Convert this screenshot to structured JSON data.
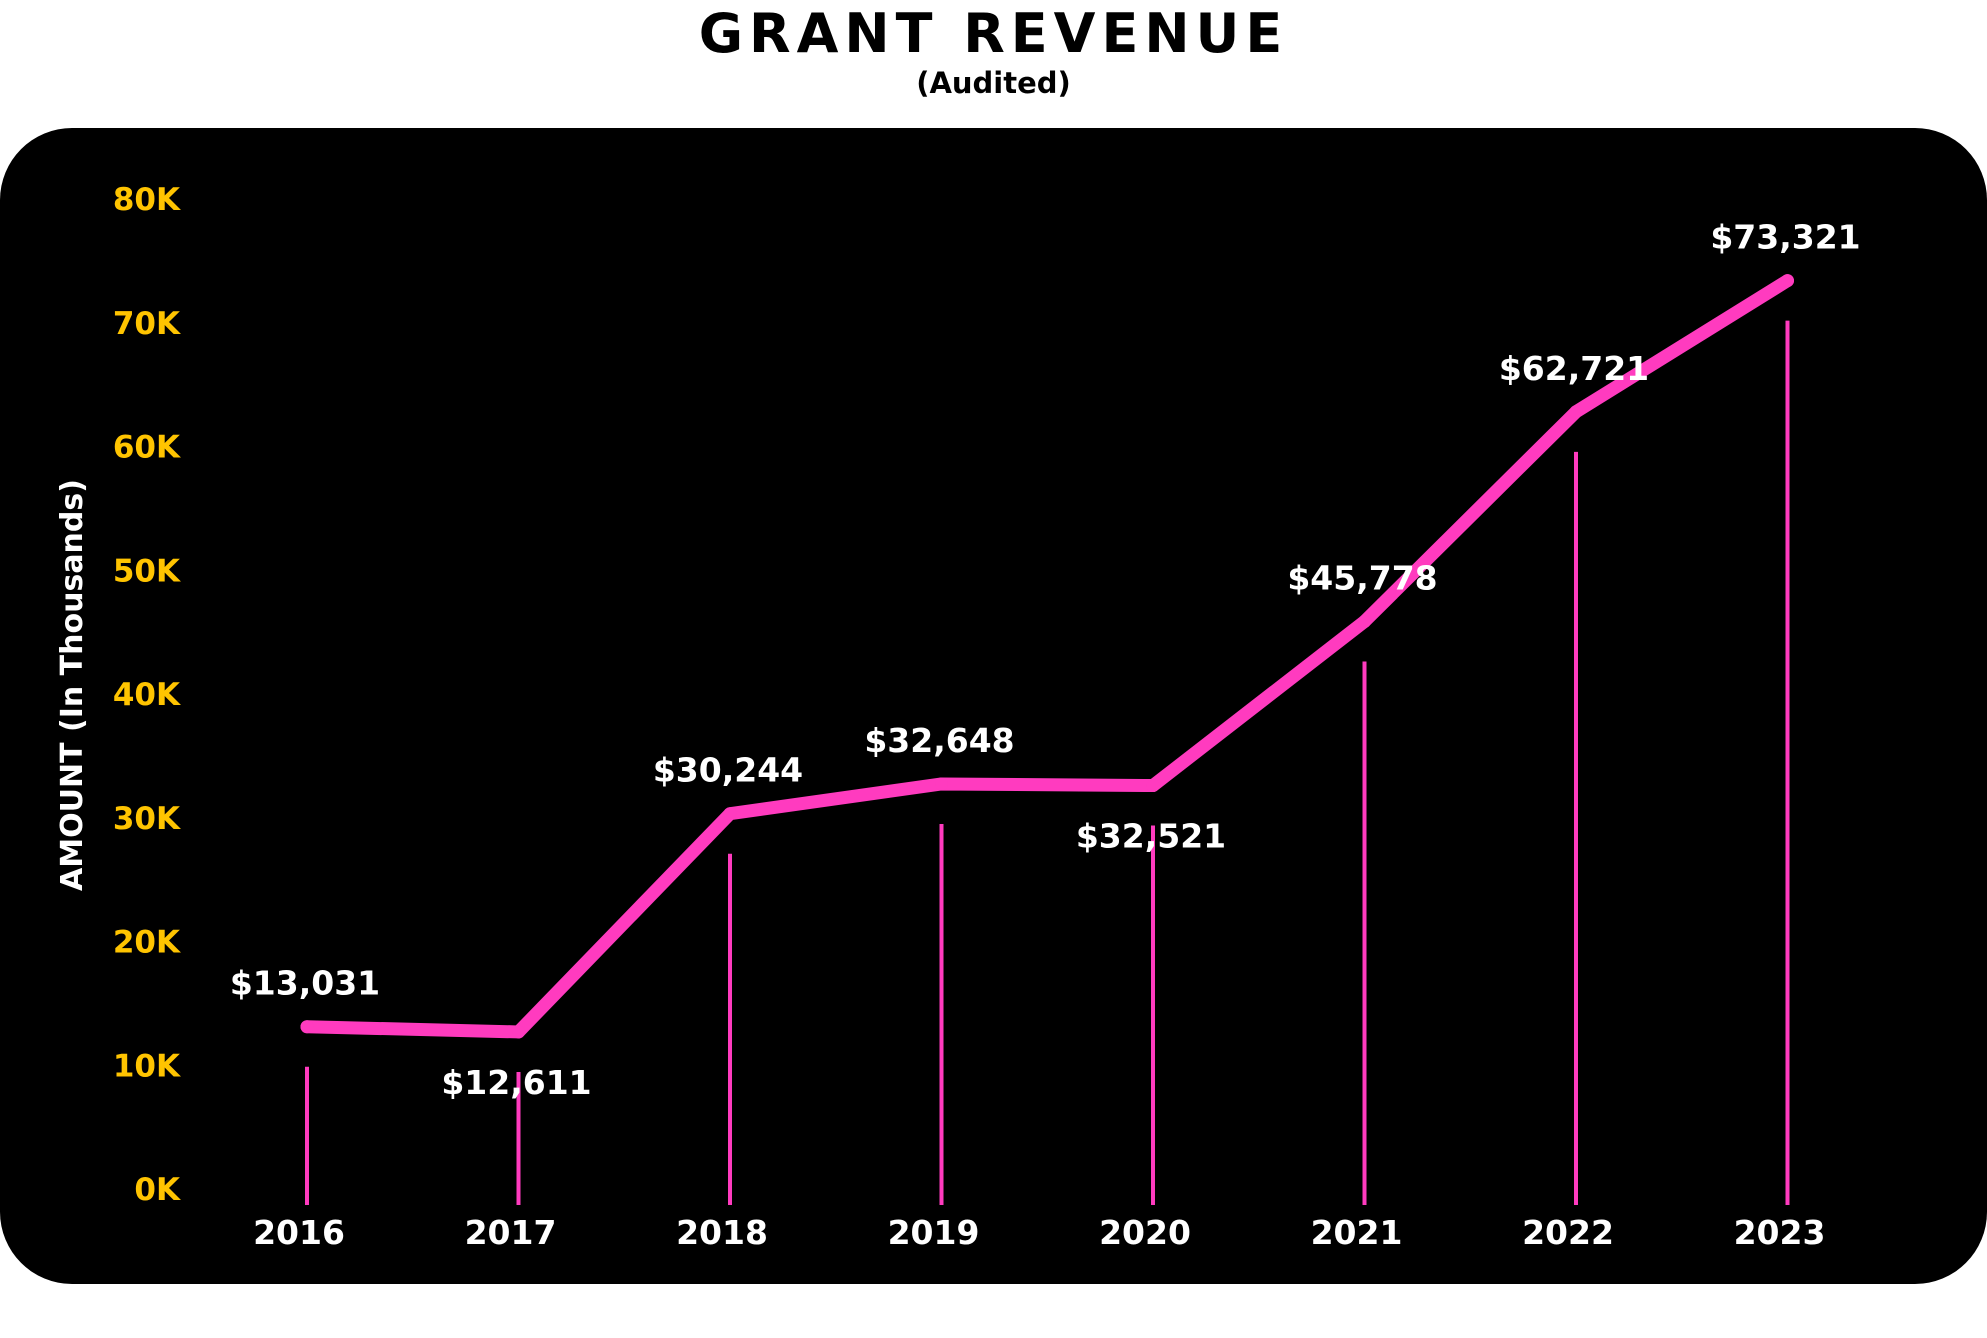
{
  "chart_data": {
    "type": "line",
    "title": "GRANT REVENUE",
    "subtitle": "(Audited)",
    "xlabel": "",
    "ylabel": "AMOUNT (In Thousands)",
    "ylim": [
      0,
      80
    ],
    "yticks": [
      {
        "value": 0,
        "label": "0K"
      },
      {
        "value": 10,
        "label": "10K"
      },
      {
        "value": 20,
        "label": "20K"
      },
      {
        "value": 30,
        "label": "30K"
      },
      {
        "value": 40,
        "label": "40K"
      },
      {
        "value": 50,
        "label": "50K"
      },
      {
        "value": 60,
        "label": "60K"
      },
      {
        "value": 70,
        "label": "70K"
      },
      {
        "value": 80,
        "label": "80K"
      }
    ],
    "categories": [
      "2016",
      "2017",
      "2018",
      "2019",
      "2020",
      "2021",
      "2022",
      "2023"
    ],
    "values": [
      13.031,
      12.611,
      30.244,
      32.648,
      32.521,
      45.778,
      62.721,
      73.321
    ],
    "data_labels": [
      "$13,031",
      "$12,611",
      "$30,244",
      "$32,648",
      "$32,521",
      "$45,778",
      "$62,721",
      "$73,321"
    ],
    "grid": false,
    "colors": {
      "line": "#ff3bbf",
      "ytick": "#ffc400",
      "text": "#ffffff",
      "background": "#000000"
    }
  }
}
